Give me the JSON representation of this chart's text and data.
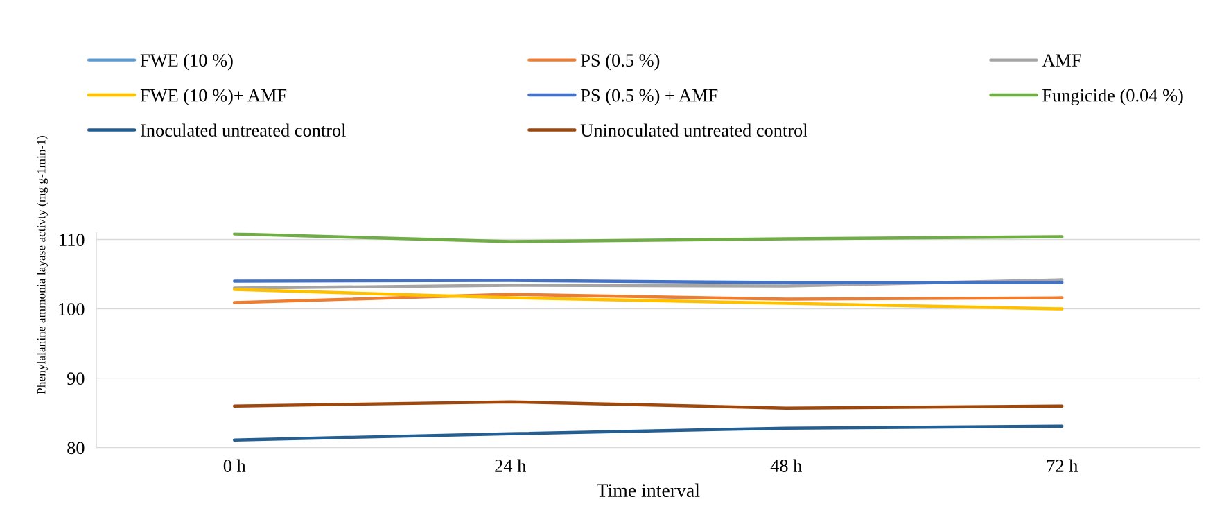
{
  "chart_data": {
    "type": "line",
    "xlabel": "Time interval",
    "ylabel": "Phenylalanine ammonia layase activty (mg g-1min-1)",
    "categories": [
      "0 h",
      "24 h",
      "48 h",
      "72 h"
    ],
    "ylim": [
      80,
      111
    ],
    "yticks": [
      80,
      90,
      100,
      110
    ],
    "grid": "y",
    "legend": "top",
    "marker": "none",
    "line_style": "solid",
    "series": [
      {
        "name": "FWE (10 %)",
        "color": "#5b9bd5",
        "values": [
          null,
          null,
          null,
          null
        ]
      },
      {
        "name": "PS (0.5 %)",
        "color": "#ed7d31",
        "values": [
          100.9,
          102.1,
          101.4,
          101.6
        ]
      },
      {
        "name": "AMF",
        "color": "#a5a5a5",
        "values": [
          103.0,
          103.4,
          103.3,
          104.2
        ]
      },
      {
        "name": "FWE (10 %)+ AMF",
        "color": "#ffc000",
        "values": [
          102.8,
          101.6,
          100.8,
          100.0
        ]
      },
      {
        "name": "PS (0.5 %) + AMF",
        "color": "#4472c4",
        "values": [
          104.0,
          104.1,
          103.8,
          103.8
        ]
      },
      {
        "name": "Fungicide (0.04 %)",
        "color": "#70ad47",
        "values": [
          110.8,
          109.7,
          110.1,
          110.4
        ]
      },
      {
        "name": "Inoculated untreated control",
        "color": "#255e91",
        "values": [
          81.1,
          82.0,
          82.8,
          83.1
        ]
      },
      {
        "name": "Uninoculated untreated control",
        "color": "#9e480e",
        "values": [
          86.0,
          86.6,
          85.7,
          86.0
        ]
      }
    ]
  }
}
